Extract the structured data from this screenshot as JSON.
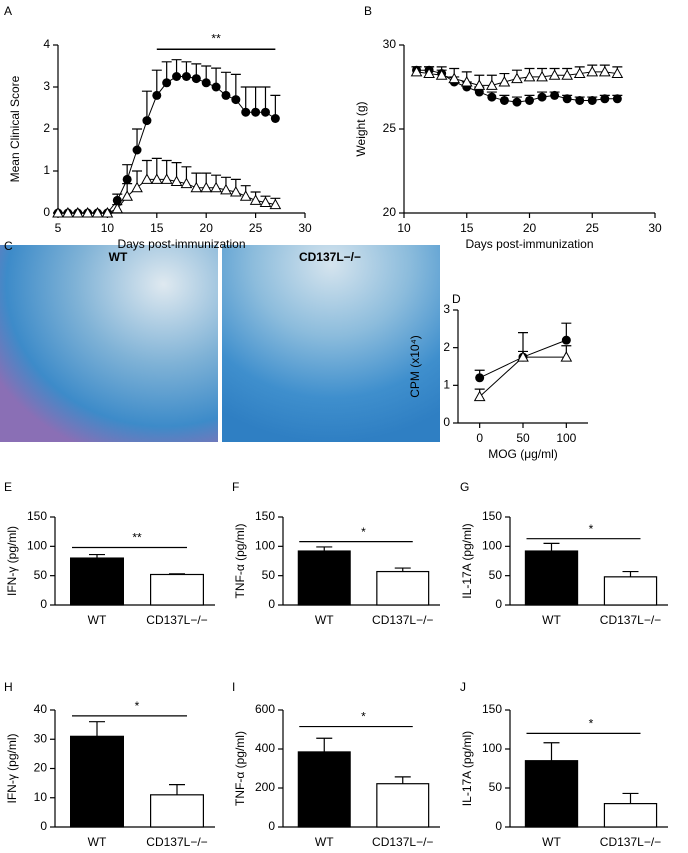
{
  "chart_data": [
    {
      "type": "line",
      "panel": "A",
      "xlabel": "Days post-immunization",
      "ylabel": "Mean Clinical Score",
      "x": [
        5,
        6,
        7,
        8,
        9,
        10,
        11,
        12,
        13,
        14,
        15,
        16,
        17,
        18,
        19,
        20,
        21,
        22,
        23,
        24,
        25,
        26,
        27
      ],
      "xlim": [
        5,
        30
      ],
      "xticks": [
        5,
        10,
        15,
        20,
        25,
        30
      ],
      "ylim": [
        0,
        4
      ],
      "yticks": [
        0,
        1,
        2,
        3,
        4
      ],
      "series": [
        {
          "marker": "circle",
          "color": "#000000",
          "values": [
            0,
            0,
            0,
            0,
            0,
            0,
            0.3,
            0.8,
            1.5,
            2.2,
            2.8,
            3.1,
            3.25,
            3.25,
            3.2,
            3.1,
            3.0,
            2.8,
            2.7,
            2.4,
            2.4,
            2.4,
            2.25
          ],
          "errors": [
            0,
            0,
            0,
            0,
            0,
            0,
            0.15,
            0.35,
            0.5,
            0.7,
            0.6,
            0.5,
            0.4,
            0.35,
            0.35,
            0.4,
            0.45,
            0.55,
            0.6,
            0.6,
            0.6,
            0.6,
            0.55
          ]
        },
        {
          "marker": "triangle",
          "color": "#000000",
          "values": [
            0,
            0,
            0,
            0,
            0,
            0,
            0.1,
            0.4,
            0.6,
            0.8,
            0.8,
            0.8,
            0.75,
            0.7,
            0.6,
            0.6,
            0.6,
            0.55,
            0.5,
            0.4,
            0.3,
            0.25,
            0.2
          ],
          "errors": [
            0,
            0,
            0,
            0,
            0,
            0,
            0.1,
            0.3,
            0.4,
            0.45,
            0.5,
            0.45,
            0.45,
            0.4,
            0.35,
            0.35,
            0.3,
            0.3,
            0.3,
            0.25,
            0.2,
            0.15,
            0.15
          ]
        }
      ],
      "sig": {
        "text": "**",
        "x": [
          15,
          27
        ],
        "y": 3.9
      }
    },
    {
      "type": "line",
      "panel": "B",
      "xlabel": "Days post-immunization",
      "ylabel": "Weight (g)",
      "x": [
        11,
        12,
        13,
        14,
        15,
        16,
        17,
        18,
        19,
        20,
        21,
        22,
        23,
        24,
        25,
        26,
        27
      ],
      "xlim": [
        10,
        30
      ],
      "xticks": [
        10,
        15,
        20,
        25,
        30
      ],
      "ylim": [
        20,
        30
      ],
      "yticks": [
        20,
        25,
        30
      ],
      "series": [
        {
          "marker": "circle",
          "color": "#000000",
          "values": [
            28.5,
            28.5,
            28.3,
            27.8,
            27.5,
            27.2,
            26.9,
            26.7,
            26.6,
            26.7,
            26.9,
            27.0,
            26.8,
            26.7,
            26.7,
            26.8,
            26.8
          ],
          "errors": [
            0.2,
            0.2,
            0.2,
            0.3,
            0.3,
            0.3,
            0.3,
            0.3,
            0.3,
            0.3,
            0.3,
            0.2,
            0.2,
            0.2,
            0.2,
            0.2,
            0.2
          ]
        },
        {
          "marker": "triangle",
          "color": "#000000",
          "values": [
            28.4,
            28.3,
            28.2,
            28.0,
            27.8,
            27.6,
            27.6,
            27.8,
            28.0,
            28.1,
            28.1,
            28.2,
            28.2,
            28.3,
            28.4,
            28.4,
            28.3
          ],
          "errors": [
            0.3,
            0.4,
            0.5,
            0.6,
            0.6,
            0.6,
            0.6,
            0.5,
            0.5,
            0.5,
            0.5,
            0.4,
            0.4,
            0.4,
            0.4,
            0.4,
            0.4
          ]
        }
      ]
    },
    {
      "type": "image",
      "panel": "C",
      "labels": [
        "WT",
        "CD137L−/−"
      ]
    },
    {
      "type": "line",
      "panel": "D",
      "xlabel": "MOG (μg/ml)",
      "ylabel": "CPM (x10⁴)",
      "x": [
        0,
        50,
        100
      ],
      "xlim": [
        -25,
        125
      ],
      "xticks": [
        0,
        50,
        100
      ],
      "ylim": [
        0,
        3
      ],
      "yticks": [
        0,
        1,
        2,
        3
      ],
      "series": [
        {
          "marker": "circle",
          "color": "#000000",
          "values": [
            1.2,
            1.75,
            2.2
          ],
          "errors": [
            0.2,
            0.15,
            0.45
          ]
        },
        {
          "marker": "triangle",
          "color": "#000000",
          "values": [
            0.7,
            1.75,
            1.75
          ],
          "errors": [
            0.2,
            0.65,
            0.3
          ]
        }
      ]
    },
    {
      "type": "bar",
      "panel": "E",
      "ylabel": "IFN-γ (pg/ml)",
      "categories": [
        "WT",
        "CD137L−/−"
      ],
      "colors": [
        "#000000",
        "#ffffff"
      ],
      "values": [
        80,
        52
      ],
      "errors": [
        6,
        1
      ],
      "ylim": [
        0,
        150
      ],
      "yticks": [
        0,
        50,
        100,
        150
      ],
      "sig": {
        "text": "**",
        "y": 98
      }
    },
    {
      "type": "bar",
      "panel": "F",
      "ylabel": "TNF-α (pg/ml)",
      "categories": [
        "WT",
        "CD137L−/−"
      ],
      "colors": [
        "#000000",
        "#ffffff"
      ],
      "values": [
        92,
        57
      ],
      "errors": [
        7,
        6
      ],
      "ylim": [
        0,
        150
      ],
      "yticks": [
        0,
        50,
        100,
        150
      ],
      "sig": {
        "text": "*",
        "y": 108
      }
    },
    {
      "type": "bar",
      "panel": "G",
      "ylabel": "IL-17A (pg/ml)",
      "categories": [
        "WT",
        "CD137L−/−"
      ],
      "colors": [
        "#000000",
        "#ffffff"
      ],
      "values": [
        92,
        48
      ],
      "errors": [
        13,
        9
      ],
      "ylim": [
        0,
        150
      ],
      "yticks": [
        0,
        50,
        100,
        150
      ],
      "sig": {
        "text": "*",
        "y": 113
      }
    },
    {
      "type": "bar",
      "panel": "H",
      "ylabel": "IFN-γ (pg/ml)",
      "categories": [
        "WT",
        "CD137L−/−"
      ],
      "colors": [
        "#000000",
        "#ffffff"
      ],
      "values": [
        31,
        11
      ],
      "errors": [
        5,
        3.5
      ],
      "ylim": [
        0,
        40
      ],
      "yticks": [
        0,
        10,
        20,
        30,
        40
      ],
      "sig": {
        "text": "*",
        "y": 38
      }
    },
    {
      "type": "bar",
      "panel": "I",
      "ylabel": "TNF-α (pg/ml)",
      "categories": [
        "WT",
        "CD137L−/−"
      ],
      "colors": [
        "#000000",
        "#ffffff"
      ],
      "values": [
        385,
        222
      ],
      "errors": [
        70,
        35
      ],
      "ylim": [
        0,
        600
      ],
      "yticks": [
        0,
        200,
        400,
        600
      ],
      "sig": {
        "text": "*",
        "y": 515
      }
    },
    {
      "type": "bar",
      "panel": "J",
      "ylabel": "IL-17A (pg/ml)",
      "categories": [
        "WT",
        "CD137L−/−"
      ],
      "colors": [
        "#000000",
        "#ffffff"
      ],
      "values": [
        85,
        30
      ],
      "errors": [
        23,
        13
      ],
      "ylim": [
        0,
        150
      ],
      "yticks": [
        0,
        50,
        100,
        150
      ],
      "sig": {
        "text": "*",
        "y": 120
      }
    }
  ]
}
